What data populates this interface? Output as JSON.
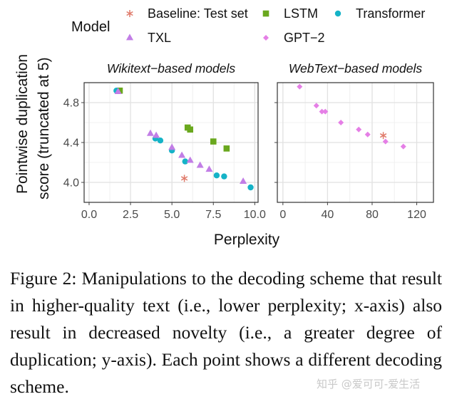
{
  "legend": {
    "title": "Model",
    "entries": [
      {
        "name": "Baseline: Test set",
        "shape": "asterisk",
        "color": "#e07b6b"
      },
      {
        "name": "LSTM",
        "shape": "square",
        "color": "#6aa81e"
      },
      {
        "name": "Transformer",
        "shape": "circle",
        "color": "#15b3c7"
      },
      {
        "name": "TXL",
        "shape": "triangle",
        "color": "#c27ee6"
      },
      {
        "name": "GPT−2",
        "shape": "diamond",
        "color": "#e57fe6"
      }
    ]
  },
  "chart_data": {
    "type": "scatter",
    "xlabel": "Perplexity",
    "ylabel_line1": "Pointwise duplication",
    "ylabel_line2": "score (truncated at 5)",
    "grid": true,
    "legend_position": "top",
    "panels": [
      {
        "title": "Wikitext−based models",
        "xlim": [
          -0.3,
          10.2
        ],
        "xticks": [
          0.0,
          2.5,
          5.0,
          7.5,
          10.0
        ],
        "xtick_labels": [
          "0.0",
          "2.5",
          "5.0",
          "7.5",
          "10.0"
        ],
        "ylim": [
          3.8,
          5.0
        ],
        "yticks": [
          4.0,
          4.4,
          4.8
        ],
        "ytick_labels": [
          "4.0",
          "4.4",
          "4.8"
        ],
        "series": [
          {
            "name": "Baseline: Test set",
            "points": [
              [
                5.75,
                4.04
              ]
            ]
          },
          {
            "name": "LSTM",
            "points": [
              [
                1.85,
                4.92
              ],
              [
                5.95,
                4.55
              ],
              [
                6.1,
                4.53
              ],
              [
                7.5,
                4.41
              ],
              [
                8.3,
                4.34
              ]
            ]
          },
          {
            "name": "Transformer",
            "points": [
              [
                1.65,
                4.92
              ],
              [
                4.0,
                4.44
              ],
              [
                4.3,
                4.42
              ],
              [
                5.0,
                4.32
              ],
              [
                5.8,
                4.21
              ],
              [
                7.7,
                4.07
              ],
              [
                8.15,
                4.06
              ],
              [
                9.75,
                3.95
              ]
            ]
          },
          {
            "name": "TXL",
            "points": [
              [
                1.75,
                4.91
              ],
              [
                3.7,
                4.49
              ],
              [
                4.05,
                4.47
              ],
              [
                5.0,
                4.35
              ],
              [
                5.6,
                4.27
              ],
              [
                6.1,
                4.22
              ],
              [
                6.7,
                4.17
              ],
              [
                7.25,
                4.13
              ],
              [
                9.3,
                4.01
              ]
            ]
          }
        ]
      },
      {
        "title": "WebText−based models",
        "xlim": [
          -5,
          135
        ],
        "xticks": [
          0,
          40,
          80,
          120
        ],
        "xtick_labels": [
          "0",
          "40",
          "80",
          "120"
        ],
        "ylim": [
          3.8,
          5.0
        ],
        "yticks": [
          4.0,
          4.4,
          4.8
        ],
        "series": [
          {
            "name": "Baseline: Test set",
            "points": [
              [
                90,
                4.47
              ]
            ]
          },
          {
            "name": "GPT−2",
            "points": [
              [
                15,
                4.96
              ],
              [
                30,
                4.77
              ],
              [
                35,
                4.71
              ],
              [
                38,
                4.71
              ],
              [
                52,
                4.6
              ],
              [
                68,
                4.53
              ],
              [
                76,
                4.48
              ],
              [
                92,
                4.41
              ],
              [
                108,
                4.36
              ]
            ]
          }
        ]
      }
    ]
  },
  "caption": "Figure 2: Manipulations to the decoding scheme that result in higher-quality text (i.e., lower perplexity; x-axis) also result in decreased novelty (i.e., a greater degree of duplication; y-axis). Each point shows a different decoding scheme.",
  "watermark": "知乎 @爱可可-爱生活"
}
